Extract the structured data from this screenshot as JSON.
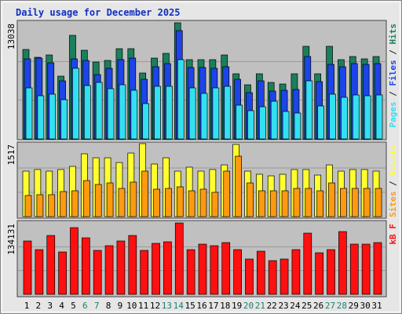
{
  "title": "Daily usage for December 2025",
  "chart_data": [
    {
      "type": "bar",
      "ylim": [
        0,
        13038
      ],
      "yticks": [
        13038
      ],
      "legend_separator": " / ",
      "series": [
        {
          "name": "Pages",
          "color": "#33e0f0",
          "values": [
            5727,
            4846,
            5022,
            4405,
            7929,
            5991,
            6343,
            5638,
            6079,
            5462,
            3965,
            5903,
            5903,
            8898,
            5727,
            5110,
            5727,
            5903,
            3788,
            3172,
            3612,
            4229,
            3084,
            2907,
            6519,
            3700,
            5022,
            4669,
            4934,
            4846,
            4934
          ]
        },
        {
          "name": "Files",
          "color": "#1c44e8",
          "values": [
            8986,
            9074,
            8546,
            6519,
            8986,
            8810,
            7224,
            7929,
            8898,
            9074,
            6696,
            8105,
            8458,
            12158,
            8017,
            8017,
            7929,
            8105,
            6696,
            5198,
            6519,
            5374,
            5462,
            5550,
            9250,
            6431,
            8370,
            8105,
            8458,
            8370,
            8458
          ]
        },
        {
          "name": "Hits",
          "color": "#1b7f5b",
          "values": [
            10043,
            9162,
            9426,
            7048,
            11629,
            9955,
            8633,
            8810,
            10131,
            10131,
            7400,
            9074,
            9603,
            13038,
            8898,
            8898,
            8898,
            9426,
            7312,
            6079,
            7312,
            6343,
            6167,
            7312,
            10395,
            7312,
            10395,
            8898,
            9250,
            8986,
            9250
          ]
        }
      ]
    },
    {
      "type": "bar",
      "ylim": [
        0,
        1517
      ],
      "yticks": [
        1517
      ],
      "legend_separator": " / ",
      "series": [
        {
          "name": "Sites",
          "color": "#ff9a10",
          "values": [
            440,
            457,
            457,
            522,
            538,
            750,
            669,
            701,
            587,
            718,
            946,
            571,
            587,
            620,
            538,
            571,
            506,
            946,
            1256,
            701,
            538,
            538,
            538,
            587,
            587,
            538,
            701,
            587,
            587,
            587,
            587
          ]
        },
        {
          "name": "Visits",
          "color": "#ffff30",
          "values": [
            946,
            979,
            946,
            979,
            1044,
            1305,
            1223,
            1223,
            1125,
            1321,
            1517,
            1093,
            1223,
            946,
            1028,
            946,
            979,
            1076,
            1500,
            946,
            881,
            848,
            881,
            979,
            979,
            864,
            1076,
            946,
            979,
            979,
            946
          ]
        }
      ]
    },
    {
      "type": "bar",
      "ylim": [
        0,
        134131
      ],
      "yticks": [
        134131
      ],
      "categories": [
        "1",
        "2",
        "3",
        "4",
        "5",
        "6",
        "7",
        "8",
        "9",
        "10",
        "11",
        "12",
        "13",
        "14",
        "15",
        "16",
        "17",
        "18",
        "19",
        "20",
        "21",
        "22",
        "23",
        "24",
        "25",
        "26",
        "27",
        "28",
        "29",
        "30",
        "31"
      ],
      "category_colors": [
        "#000000",
        "#000000",
        "#000000",
        "#000000",
        "#000000",
        "#1a8070",
        "#1a8070",
        "#000000",
        "#000000",
        "#000000",
        "#000000",
        "#000000",
        "#1a8070",
        "#1a8070",
        "#000000",
        "#000000",
        "#000000",
        "#000000",
        "#000000",
        "#1a8070",
        "#1a8070",
        "#000000",
        "#000000",
        "#000000",
        "#000000",
        "#000000",
        "#1a8070",
        "#1a8070",
        "#000000",
        "#000000",
        "#000000"
      ],
      "series": [
        {
          "name": "kB F",
          "color": "#ff1010",
          "values": [
            100232,
            84018,
            110550,
            79596,
            125290,
            106128,
            82544,
            91388,
            100232,
            110550,
            82544,
            95810,
            98758,
            134131,
            84018,
            94336,
            91388,
            97284,
            84018,
            66330,
            81070,
            63382,
            66330,
            84018,
            114972,
            78122,
            84018,
            117920,
            94336,
            94336,
            97284
          ]
        }
      ]
    }
  ]
}
